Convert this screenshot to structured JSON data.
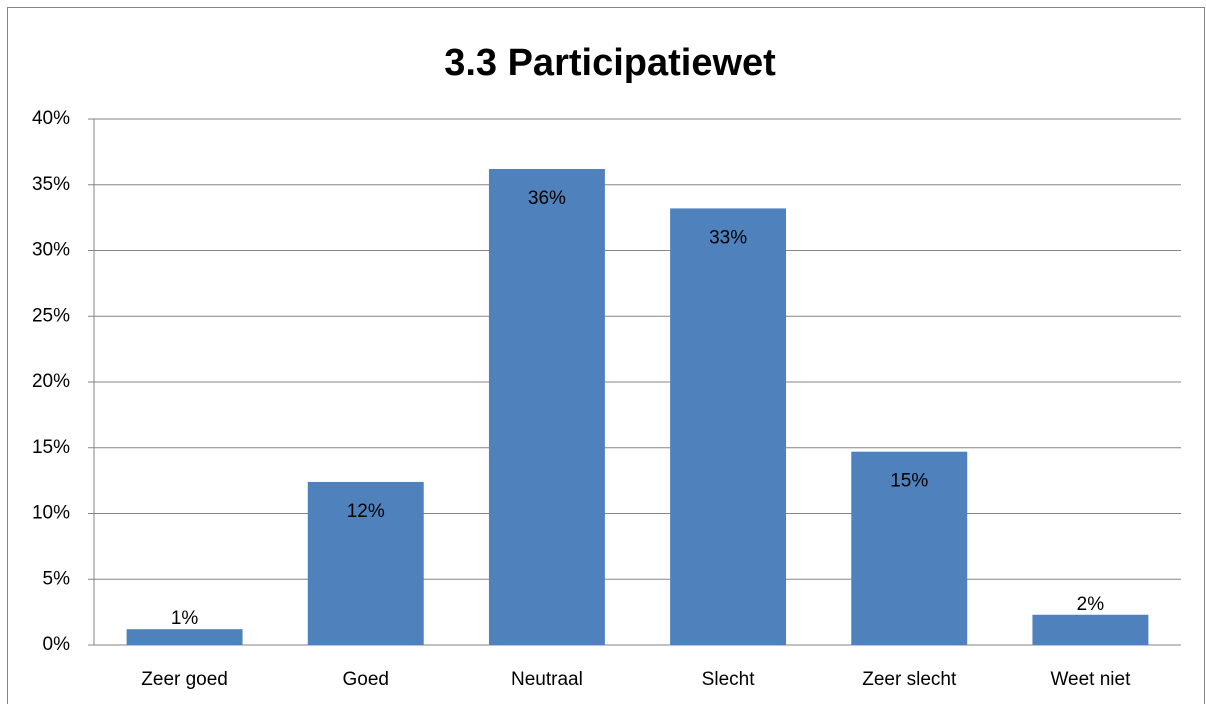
{
  "chart_data": {
    "type": "bar",
    "title": "3.3 Participatiewet",
    "categories": [
      "Zeer goed",
      "Goed",
      "Neutraal",
      "Slecht",
      "Zeer slecht",
      "Weet niet"
    ],
    "values": [
      1.2,
      12.4,
      36.2,
      33.2,
      14.7,
      2.3
    ],
    "value_labels": [
      "1%",
      "12%",
      "36%",
      "33%",
      "15%",
      "2%"
    ],
    "color": "#4f81bd",
    "ylim": [
      0,
      40
    ],
    "yticks": [
      {
        "value": 0,
        "label": "0%"
      },
      {
        "value": 5,
        "label": "5%"
      },
      {
        "value": 10,
        "label": "10%"
      },
      {
        "value": 15,
        "label": "15%"
      },
      {
        "value": 20,
        "label": "20%"
      },
      {
        "value": 25,
        "label": "25%"
      },
      {
        "value": 30,
        "label": "30%"
      },
      {
        "value": 35,
        "label": "35%"
      },
      {
        "value": 40,
        "label": "40%"
      }
    ],
    "grid": true
  }
}
